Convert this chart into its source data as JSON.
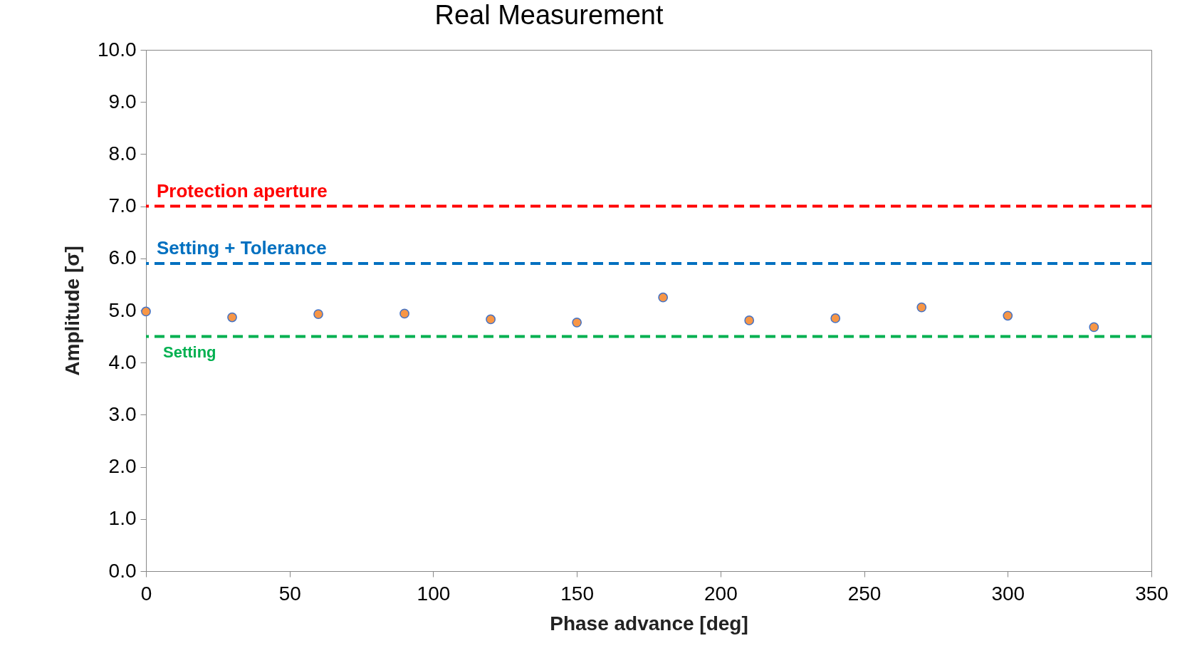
{
  "chart_data": {
    "type": "scatter",
    "title": "Real Measurement",
    "xlabel": "Phase advance [deg]",
    "ylabel": "Amplitude [σ]",
    "x": [
      0,
      30,
      60,
      90,
      120,
      150,
      180,
      210,
      240,
      270,
      300,
      330
    ],
    "series": [
      {
        "color": "#f79646",
        "values": [
          4.98,
          4.87,
          4.93,
          4.94,
          4.83,
          4.77,
          5.25,
          4.81,
          4.85,
          5.06,
          4.9,
          4.68
        ]
      }
    ],
    "xlim": [
      0,
      350
    ],
    "xticks": [
      0,
      50,
      100,
      150,
      200,
      250,
      300,
      350
    ],
    "ylim": [
      0,
      10
    ],
    "yticks": [
      {
        "value": 0,
        "label": "0.0"
      },
      {
        "value": 1,
        "label": "1.0"
      },
      {
        "value": 2,
        "label": "2.0"
      },
      {
        "value": 3,
        "label": "3.0"
      },
      {
        "value": 4,
        "label": "4.0"
      },
      {
        "value": 5,
        "label": "5.0"
      },
      {
        "value": 6,
        "label": "6.0"
      },
      {
        "value": 7,
        "label": "7.0"
      },
      {
        "value": 8,
        "label": "8.0"
      },
      {
        "value": 9,
        "label": "9.0"
      },
      {
        "value": 10,
        "label": "10.0"
      }
    ],
    "ref_lines": [
      {
        "axis": "y",
        "value": 7.0,
        "label": "Protection aperture",
        "color": "#ff0000",
        "line_style": "dashed"
      },
      {
        "axis": "y",
        "value": 5.9,
        "label": "Setting + Tolerance",
        "color": "#0070c0",
        "line_style": "dashed"
      },
      {
        "axis": "y",
        "value": 4.5,
        "label": "Setting",
        "color": "#00b050",
        "line_style": "dashed"
      }
    ],
    "marker": "circle",
    "grid": false
  }
}
